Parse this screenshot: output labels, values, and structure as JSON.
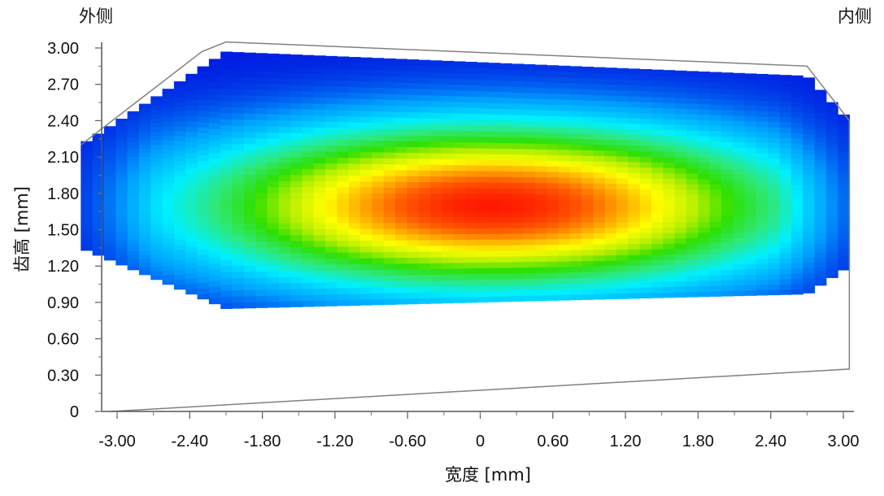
{
  "chart_data": {
    "type": "heatmap",
    "title": "",
    "xlabel": "宽度 [mm]",
    "ylabel": "齿高 [mm]",
    "corner_labels": {
      "left": "外侧",
      "right": "内侧"
    },
    "x_ticks": [
      "-3.00",
      "-2.40",
      "-1.80",
      "-1.20",
      "-0.60",
      "0",
      "0.60",
      "1.20",
      "1.80",
      "2.40",
      "3.00"
    ],
    "x_tick_values": [
      -3.0,
      -2.4,
      -1.8,
      -1.2,
      -0.6,
      0,
      0.6,
      1.2,
      1.8,
      2.4,
      3.0
    ],
    "y_ticks": [
      "0",
      "0.30",
      "0.60",
      "0.90",
      "1.20",
      "1.50",
      "1.80",
      "2.10",
      "2.40",
      "2.70",
      "3.00"
    ],
    "y_tick_values": [
      0,
      0.3,
      0.6,
      0.9,
      1.2,
      1.5,
      1.8,
      2.1,
      2.4,
      2.7,
      3.0
    ],
    "xlim": [
      -3.15,
      3.15
    ],
    "ylim": [
      0,
      3.05
    ],
    "grid": false,
    "colormap": [
      "#0018e0",
      "#00a0ff",
      "#00f0ff",
      "#2ee87a",
      "#2ee000",
      "#b8ef00",
      "#ffff00",
      "#ffb000",
      "#ff5a00",
      "#ff1a00"
    ],
    "contact_pattern": {
      "top_boundary": [
        [
          -3.3,
          2.2
        ],
        [
          -2.1,
          2.97
        ],
        [
          2.7,
          2.77
        ],
        [
          3.05,
          2.4
        ]
      ],
      "bottom_boundary": [
        [
          -3.3,
          1.35
        ],
        [
          -2.1,
          0.85
        ],
        [
          2.7,
          0.97
        ],
        [
          3.05,
          1.2
        ]
      ],
      "peak": {
        "x": 0.1,
        "y": 1.7
      },
      "spread_x": 1.55,
      "spread_y": 0.42,
      "max_value": 1.0,
      "min_value": 0.0
    },
    "frame": {
      "back_outline": [
        [
          -3.05,
          0
        ],
        [
          3.05,
          0.35
        ],
        [
          3.05,
          2.4
        ],
        [
          2.7,
          2.85
        ],
        [
          -2.1,
          3.05
        ],
        [
          -2.3,
          2.97
        ],
        [
          -3.3,
          2.2
        ]
      ]
    }
  }
}
